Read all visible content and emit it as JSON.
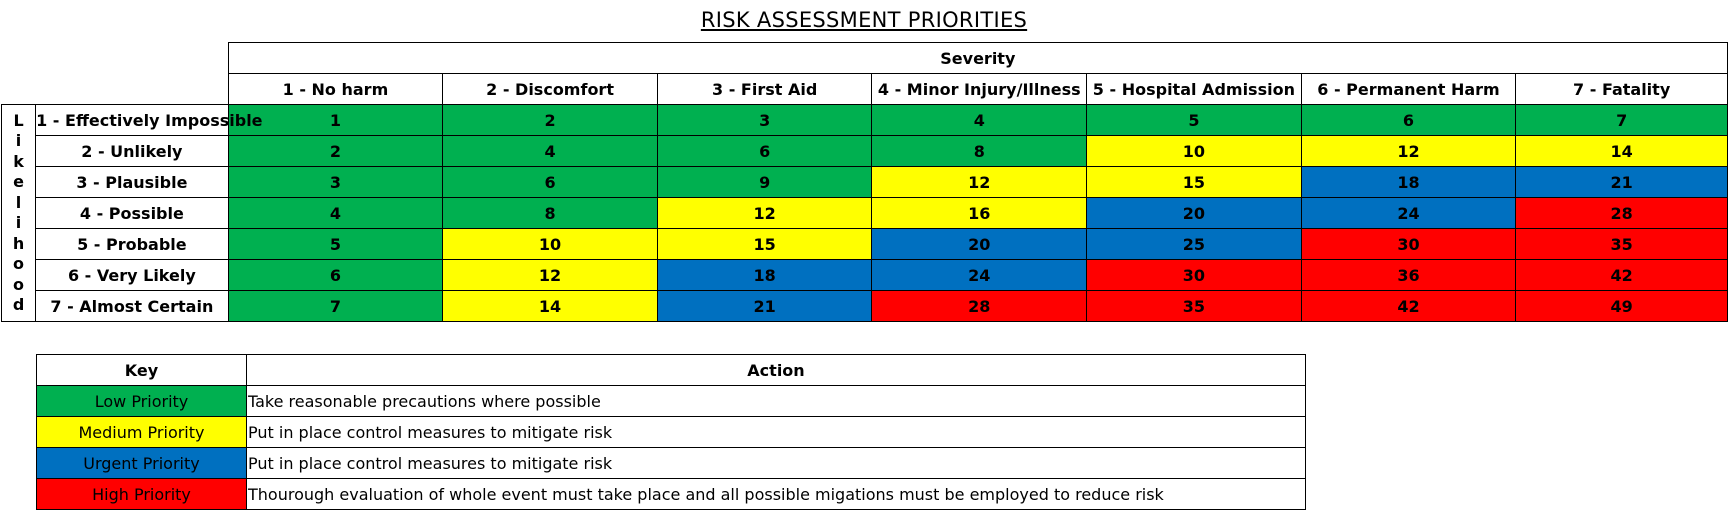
{
  "title": "RISK ASSESSMENT PRIORITIES",
  "matrix": {
    "severity_label": "Severity",
    "likelihood_label": "Likelihood",
    "severity": [
      "1 - No harm",
      "2 - Discomfort",
      "3 - First Aid",
      "4 - Minor Injury/Illness",
      "5 - Hospital Admission",
      "6 - Permanent Harm",
      "7 - Fatality"
    ],
    "likelihood": [
      "1 - Effectively Impossible",
      "2 - Unlikely",
      "3 - Plausible",
      "4 - Possible",
      "5 - Probable",
      "6 - Very Likely",
      "7 - Almost Certain"
    ],
    "scores": [
      [
        1,
        2,
        3,
        4,
        5,
        6,
        7
      ],
      [
        2,
        4,
        6,
        8,
        10,
        12,
        14
      ],
      [
        3,
        6,
        9,
        12,
        15,
        18,
        21
      ],
      [
        4,
        8,
        12,
        16,
        20,
        24,
        28
      ],
      [
        5,
        10,
        15,
        20,
        25,
        30,
        35
      ],
      [
        6,
        12,
        18,
        24,
        30,
        36,
        42
      ],
      [
        7,
        14,
        21,
        28,
        35,
        42,
        49
      ]
    ],
    "priority": [
      [
        "low",
        "low",
        "low",
        "low",
        "low",
        "low",
        "low"
      ],
      [
        "low",
        "low",
        "low",
        "low",
        "med",
        "med",
        "med"
      ],
      [
        "low",
        "low",
        "low",
        "med",
        "med",
        "urg",
        "urg"
      ],
      [
        "low",
        "low",
        "med",
        "med",
        "urg",
        "urg",
        "high"
      ],
      [
        "low",
        "med",
        "med",
        "urg",
        "urg",
        "high",
        "high"
      ],
      [
        "low",
        "med",
        "urg",
        "urg",
        "high",
        "high",
        "high"
      ],
      [
        "low",
        "med",
        "urg",
        "high",
        "high",
        "high",
        "high"
      ]
    ]
  },
  "colors": {
    "low": "#00b050",
    "med": "#ffff00",
    "urg": "#0070c0",
    "high": "#ff0000"
  },
  "key": {
    "header_key": "Key",
    "header_action": "Action",
    "rows": [
      {
        "priority": "low",
        "label": "Low Priority",
        "action": "Take reasonable precautions where possible"
      },
      {
        "priority": "med",
        "label": "Medium Priority",
        "action": "Put in  place control measures to mitigate risk"
      },
      {
        "priority": "urg",
        "label": "Urgent Priority",
        "action": "Put in  place control measures to mitigate risk"
      },
      {
        "priority": "high",
        "label": "High Priority",
        "action": "Thourough evaluation of whole event must take place and all possible migations must be employed  to reduce risk"
      }
    ]
  }
}
